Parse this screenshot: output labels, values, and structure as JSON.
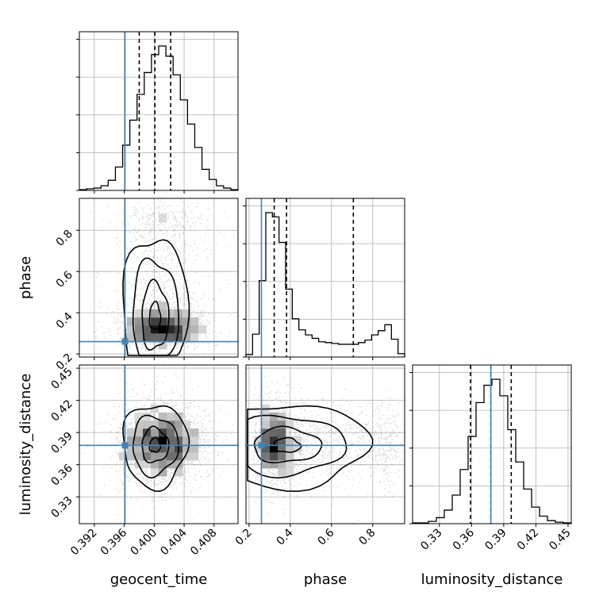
{
  "chart_data": {
    "type": "corner",
    "parameters": [
      "geocent_time",
      "phase",
      "luminosity_distance"
    ],
    "axis_labels": {
      "geocent_time": "geocent_time",
      "phase": "phase",
      "luminosity_distance": "luminosity_distance"
    },
    "ranges": {
      "geocent_time": [
        0.39,
        0.4112
      ],
      "phase": [
        0.185,
        0.955
      ],
      "luminosity_distance": [
        0.305,
        0.453
      ]
    },
    "ticks": {
      "geocent_time": [
        "0.392",
        "0.396",
        "0.400",
        "0.404",
        "0.408"
      ],
      "phase": [
        "0.2",
        "0.4",
        "0.6",
        "0.8"
      ],
      "luminosity_distance": [
        "0.33",
        "0.36",
        "0.39",
        "0.42",
        "0.45"
      ]
    },
    "truths": {
      "geocent_time": 0.3961,
      "phase": 0.26,
      "luminosity_distance": 0.378
    },
    "quantiles": {
      "geocent_time": [
        0.398,
        0.4001,
        0.4022
      ],
      "phase": [
        0.322,
        0.382,
        0.706
      ],
      "luminosity_distance": [
        0.359,
        0.378,
        0.397
      ]
    },
    "histograms": {
      "geocent_time": [
        1,
        2,
        3,
        6,
        13,
        30,
        58,
        90,
        123,
        151,
        174,
        185,
        172,
        148,
        116,
        85,
        55,
        27,
        14,
        6,
        3,
        1
      ],
      "phase": [
        3,
        27,
        90,
        170,
        165,
        135,
        80,
        45,
        32,
        26,
        22,
        18,
        17,
        16,
        15,
        15,
        15,
        17,
        20,
        26,
        31,
        38,
        21,
        4
      ],
      "luminosity_distance": [
        1,
        1,
        3,
        8,
        18,
        38,
        72,
        116,
        161,
        184,
        192,
        170,
        125,
        82,
        46,
        22,
        10,
        4,
        2,
        1
      ]
    },
    "grid": true,
    "point_color": "#000000",
    "truth_color": "#4682b4",
    "contour_color": "#000000"
  }
}
